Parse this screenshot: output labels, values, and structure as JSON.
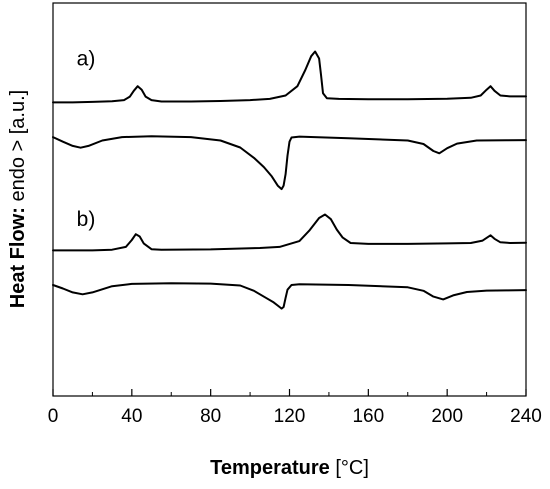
{
  "chart_data": {
    "type": "line",
    "title": "",
    "xlabel_bold": "Temperature",
    "xlabel_rest": " [°C]",
    "ylabel_bold": "Heat Flow:",
    "ylabel_rest": " endo > [a.u.]",
    "xlim": [
      0,
      240
    ],
    "x_ticks": [
      0,
      40,
      80,
      120,
      160,
      200,
      240
    ],
    "y_ticks_shown": false,
    "grid": false,
    "legend": "none",
    "panel_labels": [
      {
        "text": "a)",
        "x": 12,
        "y": 14.3
      },
      {
        "text": "b)",
        "x": 12,
        "y": 7.35
      }
    ],
    "series": [
      {
        "panel": "a",
        "kind": "heating",
        "points": [
          [
            0,
            12.7
          ],
          [
            10,
            12.7
          ],
          [
            20,
            12.72
          ],
          [
            30,
            12.75
          ],
          [
            36,
            12.8
          ],
          [
            39,
            12.95
          ],
          [
            41,
            13.2
          ],
          [
            43,
            13.4
          ],
          [
            45,
            13.25
          ],
          [
            47,
            12.95
          ],
          [
            50,
            12.8
          ],
          [
            55,
            12.74
          ],
          [
            70,
            12.74
          ],
          [
            85,
            12.76
          ],
          [
            100,
            12.8
          ],
          [
            110,
            12.85
          ],
          [
            118,
            13.0
          ],
          [
            124,
            13.4
          ],
          [
            128,
            14.1
          ],
          [
            131,
            14.7
          ],
          [
            133,
            14.9
          ],
          [
            135,
            14.6
          ],
          [
            136,
            13.9
          ],
          [
            137,
            13.1
          ],
          [
            139,
            12.88
          ],
          [
            145,
            12.85
          ],
          [
            160,
            12.84
          ],
          [
            180,
            12.84
          ],
          [
            200,
            12.86
          ],
          [
            212,
            12.9
          ],
          [
            217,
            13.0
          ],
          [
            220,
            13.25
          ],
          [
            222,
            13.4
          ],
          [
            224,
            13.2
          ],
          [
            227,
            13.0
          ],
          [
            232,
            12.96
          ],
          [
            240,
            12.96
          ]
        ]
      },
      {
        "panel": "a",
        "kind": "cooling",
        "points": [
          [
            0,
            11.2
          ],
          [
            5,
            11.0
          ],
          [
            10,
            10.82
          ],
          [
            14,
            10.74
          ],
          [
            18,
            10.82
          ],
          [
            25,
            11.05
          ],
          [
            35,
            11.2
          ],
          [
            50,
            11.24
          ],
          [
            70,
            11.2
          ],
          [
            85,
            11.05
          ],
          [
            95,
            10.75
          ],
          [
            102,
            10.3
          ],
          [
            107,
            9.9
          ],
          [
            111,
            9.5
          ],
          [
            114,
            9.1
          ],
          [
            116,
            8.95
          ],
          [
            117,
            9.1
          ],
          [
            118,
            9.6
          ],
          [
            119,
            10.4
          ],
          [
            120,
            11.0
          ],
          [
            121,
            11.18
          ],
          [
            125,
            11.22
          ],
          [
            150,
            11.15
          ],
          [
            180,
            11.05
          ],
          [
            188,
            10.9
          ],
          [
            193,
            10.6
          ],
          [
            196,
            10.5
          ],
          [
            200,
            10.72
          ],
          [
            205,
            10.92
          ],
          [
            215,
            11.05
          ],
          [
            230,
            11.06
          ],
          [
            240,
            11.07
          ]
        ]
      },
      {
        "panel": "b",
        "kind": "heating",
        "points": [
          [
            0,
            6.3
          ],
          [
            10,
            6.3
          ],
          [
            20,
            6.3
          ],
          [
            30,
            6.33
          ],
          [
            37,
            6.45
          ],
          [
            40,
            6.75
          ],
          [
            42,
            7.0
          ],
          [
            44,
            6.9
          ],
          [
            46,
            6.6
          ],
          [
            50,
            6.35
          ],
          [
            55,
            6.33
          ],
          [
            80,
            6.34
          ],
          [
            105,
            6.4
          ],
          [
            115,
            6.45
          ],
          [
            125,
            6.7
          ],
          [
            130,
            7.15
          ],
          [
            135,
            7.7
          ],
          [
            138,
            7.85
          ],
          [
            141,
            7.65
          ],
          [
            144,
            7.2
          ],
          [
            147,
            6.85
          ],
          [
            151,
            6.62
          ],
          [
            160,
            6.58
          ],
          [
            180,
            6.58
          ],
          [
            200,
            6.6
          ],
          [
            212,
            6.62
          ],
          [
            218,
            6.72
          ],
          [
            222,
            6.95
          ],
          [
            224,
            6.8
          ],
          [
            227,
            6.65
          ],
          [
            232,
            6.62
          ],
          [
            240,
            6.63
          ]
        ]
      },
      {
        "panel": "b",
        "kind": "cooling",
        "points": [
          [
            0,
            4.8
          ],
          [
            5,
            4.65
          ],
          [
            10,
            4.48
          ],
          [
            15,
            4.4
          ],
          [
            20,
            4.48
          ],
          [
            30,
            4.75
          ],
          [
            40,
            4.85
          ],
          [
            60,
            4.88
          ],
          [
            80,
            4.86
          ],
          [
            95,
            4.78
          ],
          [
            102,
            4.55
          ],
          [
            108,
            4.25
          ],
          [
            112,
            4.05
          ],
          [
            115,
            3.85
          ],
          [
            116,
            3.78
          ],
          [
            117,
            3.85
          ],
          [
            118,
            4.25
          ],
          [
            119,
            4.6
          ],
          [
            121,
            4.8
          ],
          [
            125,
            4.83
          ],
          [
            150,
            4.8
          ],
          [
            180,
            4.7
          ],
          [
            188,
            4.55
          ],
          [
            193,
            4.3
          ],
          [
            198,
            4.18
          ],
          [
            203,
            4.35
          ],
          [
            210,
            4.5
          ],
          [
            220,
            4.56
          ],
          [
            230,
            4.57
          ],
          [
            240,
            4.58
          ]
        ]
      }
    ]
  }
}
